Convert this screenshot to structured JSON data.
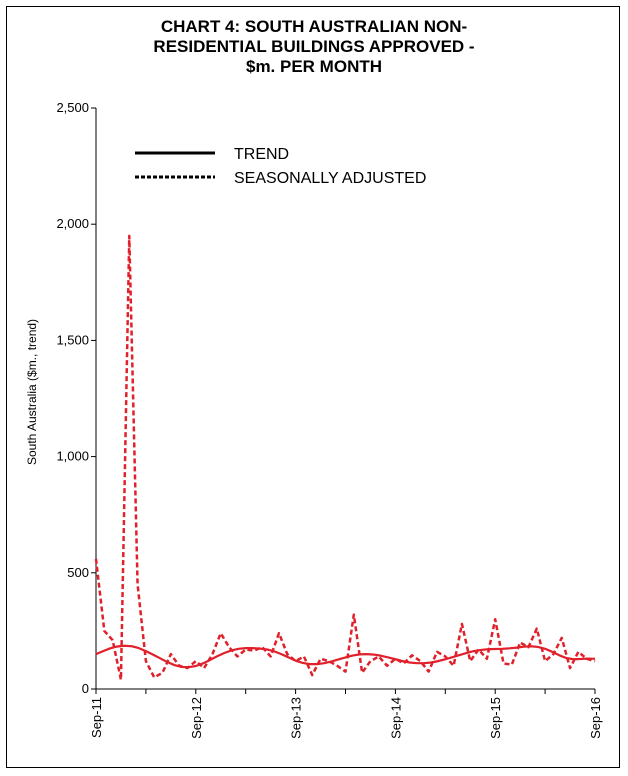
{
  "chart_data": {
    "type": "line",
    "title_lines": [
      "CHART 4: SOUTH AUSTRALIAN NON-",
      "RESIDENTIAL BUILDINGS APPROVED -",
      "$m. PER MONTH"
    ],
    "ylabel": "South Australia ($m., trend)",
    "xlabel": "",
    "ylim": [
      0,
      2500
    ],
    "yticks": [
      0,
      500,
      1000,
      1500,
      2000,
      2500
    ],
    "ytick_labels": [
      "0",
      "500",
      "1,000",
      "1,500",
      "2,000",
      "2,500"
    ],
    "xticks": [
      0,
      12,
      24,
      36,
      48,
      60
    ],
    "xtick_labels": [
      "Sep-11",
      "Sep-12",
      "Sep-13",
      "Sep-14",
      "Sep-15",
      "Sep-16"
    ],
    "grid": false,
    "legend_position": "top-left",
    "series": [
      {
        "name": "TREND",
        "style": "solid",
        "color": "#e0202a",
        "values": [
          150,
          163,
          175,
          183,
          186,
          184,
          176,
          163,
          148,
          132,
          116,
          103,
          95,
          94,
          99,
          110,
          125,
          141,
          155,
          166,
          173,
          176,
          176,
          174,
          170,
          162,
          150,
          136,
          122,
          112,
          107,
          107,
          111,
          118,
          127,
          136,
          144,
          149,
          150,
          148,
          143,
          136,
          128,
          120,
          114,
          111,
          111,
          114,
          120,
          128,
          137,
          146,
          155,
          163,
          168,
          171,
          172,
          173,
          175,
          178,
          182,
          184,
          181,
          173,
          160,
          145,
          133,
          128,
          129,
          131,
          130
        ]
      },
      {
        "name": "SEASONALLY ADJUSTED",
        "style": "dashed",
        "color": "#e0202a",
        "values": [
          560,
          250,
          210,
          40,
          1950,
          450,
          120,
          50,
          70,
          150,
          100,
          90,
          120,
          90,
          150,
          240,
          180,
          140,
          170,
          165,
          180,
          140,
          240,
          150,
          120,
          140,
          60,
          130,
          120,
          100,
          75,
          320,
          70,
          120,
          140,
          100,
          130,
          110,
          145,
          120,
          75,
          160,
          140,
          100,
          280,
          120,
          170,
          130,
          300,
          110,
          105,
          200,
          180,
          260,
          120,
          150,
          220,
          90,
          160,
          130,
          120
        ]
      }
    ]
  }
}
